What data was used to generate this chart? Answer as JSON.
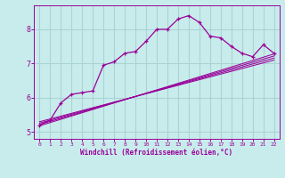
{
  "title": "",
  "xlabel": "Windchill (Refroidissement éolien,°C)",
  "ylabel": "",
  "bg_color": "#c8ecec",
  "grid_color": "#aad4d4",
  "line_color": "#990099",
  "xlim": [
    -0.5,
    22.5
  ],
  "ylim": [
    4.8,
    8.7
  ],
  "xticks": [
    0,
    1,
    2,
    3,
    4,
    5,
    6,
    7,
    8,
    9,
    10,
    11,
    12,
    13,
    14,
    15,
    16,
    17,
    18,
    19,
    20,
    21,
    22
  ],
  "yticks": [
    5,
    6,
    7,
    8
  ],
  "curve1_x": [
    0,
    1,
    2,
    3,
    4,
    5,
    6,
    7,
    8,
    9,
    10,
    11,
    12,
    13,
    14,
    15,
    16,
    17,
    18,
    19,
    20,
    21,
    22
  ],
  "curve1_y": [
    5.2,
    5.35,
    5.85,
    6.1,
    6.15,
    6.2,
    6.95,
    7.05,
    7.3,
    7.35,
    7.65,
    8.0,
    8.0,
    8.3,
    8.4,
    8.2,
    7.8,
    7.75,
    7.5,
    7.3,
    7.2,
    7.55,
    7.3
  ],
  "line2_x": [
    0,
    22
  ],
  "line2_y": [
    5.18,
    7.28
  ],
  "line3_x": [
    0,
    22
  ],
  "line3_y": [
    5.22,
    7.22
  ],
  "line4_x": [
    0,
    22
  ],
  "line4_y": [
    5.26,
    7.16
  ],
  "line5_x": [
    0,
    22
  ],
  "line5_y": [
    5.3,
    7.1
  ],
  "marker": "+"
}
